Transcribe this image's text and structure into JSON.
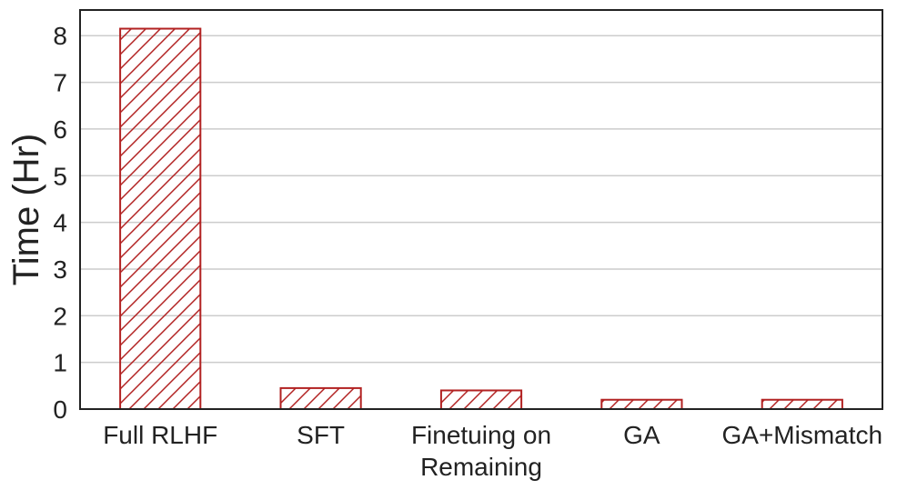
{
  "chart_data": {
    "type": "bar",
    "categories": [
      "Full RLHF",
      "SFT",
      "Finetuing on\nRemaining",
      "GA",
      "GA+Mismatch"
    ],
    "values": [
      8.15,
      0.45,
      0.4,
      0.2,
      0.2
    ],
    "ylabel": "Time (Hr)",
    "xlabel": "",
    "ylim": [
      0,
      8.55
    ],
    "yticks": [
      0,
      1,
      2,
      3,
      4,
      5,
      6,
      7,
      8
    ],
    "grid": "horizontal",
    "bar_color": "#b22222",
    "bar_fill": "hatched"
  }
}
